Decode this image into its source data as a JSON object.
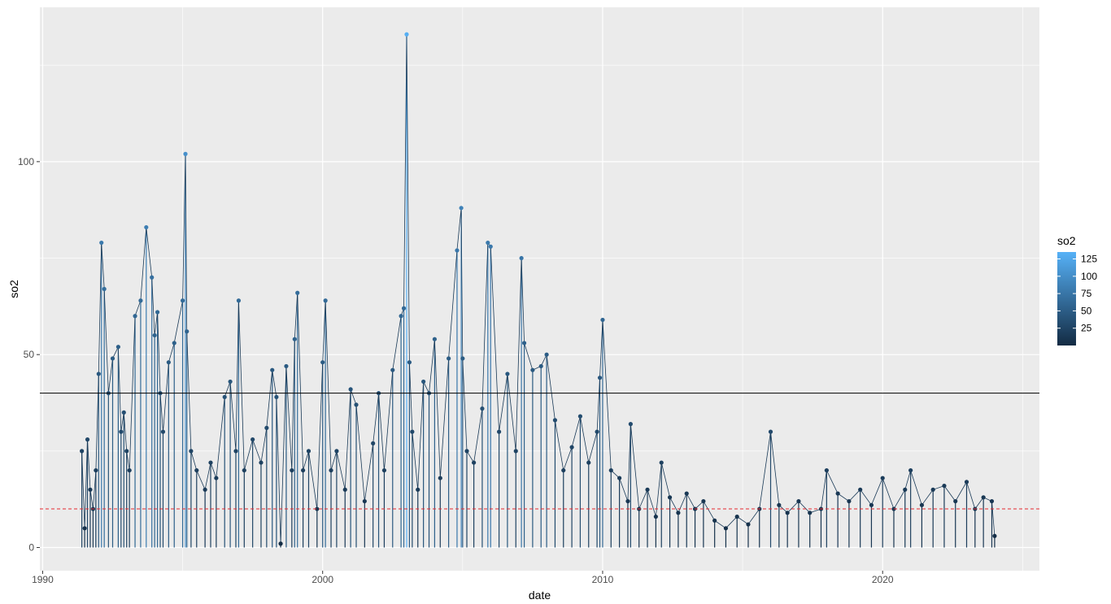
{
  "chart_data": {
    "type": "line",
    "xlabel": "date",
    "ylabel": "so2",
    "xlim": [
      1989.9,
      2025.6
    ],
    "ylim": [
      -6,
      140
    ],
    "x_ticks": [
      1990,
      2000,
      2010,
      2020
    ],
    "y_ticks": [
      0,
      50,
      100
    ],
    "grid": true,
    "series": [
      {
        "x": [
          1991.4,
          1991.5,
          1991.6,
          1991.7,
          1991.8,
          1991.9,
          1992.0,
          1992.1,
          1992.2,
          1992.35,
          1992.5,
          1992.7,
          1992.8,
          1992.9,
          1993.0,
          1993.1,
          1993.3,
          1993.5,
          1993.7,
          1993.9,
          1994.0,
          1994.1,
          1994.2,
          1994.3,
          1994.5,
          1994.7,
          1995.0,
          1995.1,
          1995.15,
          1995.3,
          1995.5,
          1995.8,
          1996.0,
          1996.2,
          1996.5,
          1996.7,
          1996.9,
          1997.0,
          1997.2,
          1997.5,
          1997.8,
          1998.0,
          1998.2,
          1998.35,
          1998.5,
          1998.7,
          1998.9,
          1999.0,
          1999.1,
          1999.3,
          1999.5,
          1999.8,
          2000.0,
          2000.1,
          2000.3,
          2000.5,
          2000.8,
          2001.0,
          2001.2,
          2001.5,
          2001.8,
          2002.0,
          2002.2,
          2002.5,
          2002.8,
          2002.9,
          2003.0,
          2003.1,
          2003.2,
          2003.4,
          2003.6,
          2003.8,
          2004.0,
          2004.2,
          2004.5,
          2004.8,
          2004.95,
          2005.0,
          2005.15,
          2005.4,
          2005.7,
          2005.9,
          2006.0,
          2006.3,
          2006.6,
          2006.9,
          2007.1,
          2007.2,
          2007.5,
          2007.8,
          2008.0,
          2008.3,
          2008.6,
          2008.9,
          2009.2,
          2009.5,
          2009.8,
          2009.9,
          2010.0,
          2010.3,
          2010.6,
          2010.9,
          2011.0,
          2011.3,
          2011.6,
          2011.9,
          2012.1,
          2012.4,
          2012.7,
          2013.0,
          2013.3,
          2013.6,
          2014.0,
          2014.4,
          2014.8,
          2015.2,
          2015.6,
          2016.0,
          2016.3,
          2016.6,
          2017.0,
          2017.4,
          2017.8,
          2018.0,
          2018.4,
          2018.8,
          2019.2,
          2019.6,
          2020.0,
          2020.4,
          2020.8,
          2021.0,
          2021.4,
          2021.8,
          2022.2,
          2022.6,
          2023.0,
          2023.3,
          2023.6,
          2023.9,
          2024.0
        ],
        "y": [
          25,
          5,
          28,
          15,
          10,
          20,
          45,
          79,
          67,
          40,
          49,
          52,
          30,
          35,
          25,
          20,
          60,
          64,
          83,
          70,
          55,
          61,
          40,
          30,
          48,
          53,
          64,
          102,
          56,
          25,
          20,
          15,
          22,
          18,
          39,
          43,
          25,
          64,
          20,
          28,
          22,
          31,
          46,
          39,
          1,
          47,
          20,
          54,
          66,
          20,
          25,
          10,
          48,
          64,
          20,
          25,
          15,
          41,
          37,
          12,
          27,
          40,
          20,
          46,
          60,
          62,
          133,
          48,
          30,
          15,
          43,
          40,
          54,
          18,
          49,
          77,
          88,
          49,
          25,
          22,
          36,
          79,
          78,
          30,
          45,
          25,
          75,
          53,
          46,
          47,
          50,
          33,
          20,
          26,
          34,
          22,
          30,
          44,
          59,
          20,
          18,
          12,
          32,
          10,
          15,
          8,
          22,
          13,
          9,
          14,
          10,
          12,
          7,
          5,
          8,
          6,
          10,
          30,
          11,
          9,
          12,
          9,
          10,
          20,
          14,
          12,
          15,
          11,
          18,
          10,
          15,
          20,
          11,
          15,
          16,
          12,
          17,
          10,
          13,
          12,
          3
        ]
      }
    ],
    "reference_lines": [
      {
        "y": 40,
        "color": "#000000",
        "style": "solid"
      },
      {
        "y": 10,
        "color": "#e4292f",
        "style": "dashed"
      }
    ],
    "legend": {
      "title": "so2",
      "position": "right",
      "labels": [
        25,
        50,
        75,
        100,
        125
      ],
      "range": [
        0,
        135
      ],
      "color_low": "#132b43",
      "color_high": "#56b1f7"
    },
    "colors": {
      "panel_background": "#ebebeb",
      "grid": "#ffffff"
    }
  }
}
